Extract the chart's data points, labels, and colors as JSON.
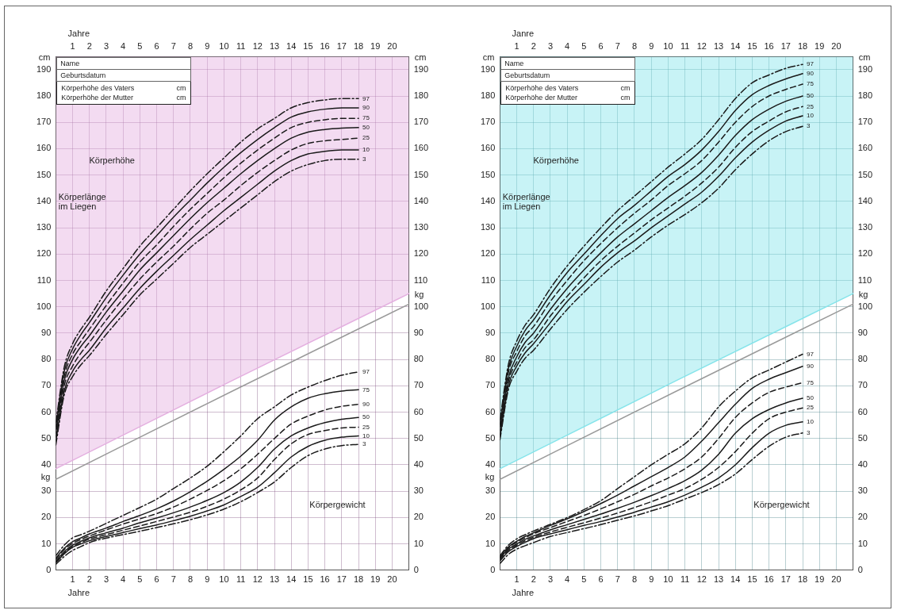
{
  "chart_data": [
    {
      "type": "line",
      "x": [
        0,
        0.5,
        1,
        1.5,
        2,
        3,
        4,
        5,
        6,
        7,
        8,
        9,
        10,
        11,
        12,
        13,
        14,
        15,
        16,
        17,
        18
      ],
      "xlim": [
        0,
        21
      ],
      "xticks": [
        1,
        2,
        3,
        4,
        5,
        6,
        7,
        8,
        9,
        10,
        11,
        12,
        13,
        14,
        15,
        16,
        17,
        18,
        19,
        20
      ],
      "x2lim": [
        0,
        21
      ],
      "x2ticks": [
        1,
        2,
        3,
        4,
        5,
        6,
        7,
        8,
        9,
        10,
        11,
        12,
        13,
        14,
        15,
        16,
        17,
        18,
        19,
        20
      ],
      "xlabel": "Jahre",
      "x2label": "Jahre",
      "ylabel": "cm",
      "y2label": "cm",
      "ylim": [
        0,
        195
      ],
      "yticks": [
        0,
        10,
        20,
        30,
        40,
        50,
        60,
        70,
        80,
        90,
        100,
        110,
        120,
        130,
        140,
        150,
        160,
        170,
        180,
        190
      ],
      "y2lim": [
        0,
        195
      ],
      "y2ticks": [
        0,
        10,
        20,
        30,
        40,
        50,
        60,
        70,
        80,
        90,
        100,
        110,
        120,
        130,
        140,
        150,
        160,
        170,
        180,
        190
      ],
      "grid": true,
      "marker": "none",
      "annotations": [
        "Name",
        "Geburtsdatum",
        "Körperhöhe des Vaters",
        "Körperhöhe der Mutter",
        "cm",
        "cm",
        "kg",
        "kg",
        "Körperhöhe",
        "Körperlänge im Liegen",
        "Körpergewicht"
      ],
      "series": [
        {
          "color": "#e4b0e0",
          "line_style": "solid",
          "x": [
            0,
            10.5,
            21
          ],
          "values": [
            38.5,
            72,
            105
          ],
          "lower": [
            38.5,
            72,
            105
          ],
          "upper": [
            195,
            195,
            195
          ]
        },
        {
          "color": "#9a9a9a",
          "line_style": "solid",
          "x": [
            0,
            10.5,
            21
          ],
          "values": [
            34.5,
            68,
            101
          ]
        },
        {
          "name": "97",
          "color": "#1a1a1a",
          "line_style": "dashdot",
          "values": [
            56,
            77,
            86,
            91.5,
            96,
            106,
            114.5,
            123,
            130,
            137,
            144,
            150.5,
            156.5,
            162.5,
            167.5,
            171.5,
            175.5,
            177.5,
            178.5,
            179,
            179
          ]
        },
        {
          "name": "90",
          "color": "#1a1a1a",
          "line_style": "solid",
          "values": [
            54.5,
            75.5,
            84,
            89.5,
            94,
            103.5,
            112,
            120,
            127,
            134,
            140.5,
            147,
            153,
            158.5,
            163.5,
            168,
            172,
            174,
            175,
            175.5,
            175.5
          ]
        },
        {
          "name": "75",
          "color": "#1a1a1a",
          "line_style": "dashed",
          "values": [
            53.5,
            73.5,
            82,
            87,
            91.5,
            100.5,
            109,
            117,
            123.5,
            130.5,
            137,
            143,
            149,
            154.5,
            159.5,
            164,
            168,
            170,
            171,
            171.5,
            171.5
          ]
        },
        {
          "name": "50",
          "color": "#1a1a1a",
          "line_style": "solid",
          "values": [
            52,
            72,
            80,
            85,
            89,
            98,
            106,
            114,
            120.5,
            127,
            133.5,
            139.5,
            145,
            150.5,
            155.5,
            160,
            164,
            166.3,
            167.3,
            167.8,
            168
          ]
        },
        {
          "name": "25",
          "color": "#1a1a1a",
          "line_style": "dashed",
          "values": [
            50.5,
            70,
            77.5,
            82.5,
            86.5,
            95,
            103,
            110.5,
            117,
            123,
            129.5,
            135.5,
            140.5,
            146,
            151,
            155.5,
            159.5,
            162,
            163,
            163.5,
            164
          ]
        },
        {
          "name": "10",
          "color": "#1a1a1a",
          "line_style": "solid",
          "values": [
            49,
            68,
            75.5,
            80,
            83.5,
            92,
            99.5,
            107,
            113.5,
            119.5,
            125.5,
            131,
            136.5,
            141.5,
            146.5,
            151.5,
            155.5,
            158,
            159,
            159.5,
            159.5
          ]
        },
        {
          "name": "3",
          "color": "#1a1a1a",
          "line_style": "dashdot",
          "values": [
            47.5,
            66.5,
            73.5,
            78,
            81.5,
            89.5,
            97,
            104.5,
            110.5,
            116.5,
            122.5,
            127.5,
            132.5,
            137.5,
            142.5,
            147.5,
            151.5,
            154,
            155.5,
            156,
            156
          ]
        },
        {
          "name": "97",
          "color": "#1a1a1a",
          "line_style": "dashdot",
          "values": [
            5.5,
            9.5,
            12.3,
            13.5,
            14.8,
            17.8,
            20.8,
            23.8,
            27,
            31,
            35,
            39.5,
            45,
            51,
            57.5,
            62,
            66.5,
            69.5,
            72,
            74,
            75.3
          ]
        },
        {
          "name": "75",
          "color": "#1a1a1a",
          "line_style": "solid",
          "values": [
            4.5,
            8.3,
            10.8,
            12.3,
            13.8,
            16,
            18.5,
            20.8,
            23.3,
            26.3,
            29.8,
            33.8,
            38.3,
            43.3,
            49.3,
            57,
            62,
            65.3,
            67,
            68,
            68.5
          ]
        },
        {
          "name": "90",
          "color": "#1a1a1a",
          "line_style": "dashed",
          "values": [
            4,
            7.8,
            10.2,
            11.7,
            13,
            15.3,
            17.5,
            19.5,
            21.5,
            24,
            27,
            30.3,
            34,
            38.5,
            44,
            50,
            55.5,
            58.5,
            60.8,
            62.2,
            63
          ]
        },
        {
          "name": "50",
          "color": "#1a1a1a",
          "line_style": "solid",
          "values": [
            3.3,
            7,
            9.5,
            11,
            12.3,
            14.2,
            16,
            18,
            19.8,
            21.8,
            24,
            26.5,
            29.5,
            33.5,
            39,
            46,
            51,
            54,
            56,
            57.3,
            58
          ]
        },
        {
          "name": "25",
          "color": "#1a1a1a",
          "line_style": "dashed",
          "values": [
            3,
            6.5,
            9,
            10.5,
            11.8,
            13.5,
            15.2,
            16.8,
            18.5,
            20.2,
            22,
            24.3,
            27,
            30.5,
            35,
            42,
            48,
            51.5,
            53,
            54,
            54.3
          ]
        },
        {
          "name": "10",
          "color": "#1a1a1a",
          "line_style": "solid",
          "values": [
            2.8,
            6.2,
            8.7,
            10,
            11.2,
            12.8,
            14.3,
            15.8,
            17.2,
            18.8,
            20.5,
            22.5,
            24.8,
            28,
            31.5,
            37,
            43,
            47,
            49.3,
            50.5,
            51
          ]
        },
        {
          "name": "3",
          "color": "#1a1a1a",
          "line_style": "dashdot",
          "values": [
            2.2,
            5.2,
            7.5,
            9,
            10.5,
            12.2,
            13.5,
            14.8,
            16.2,
            17.6,
            19.2,
            21,
            23.2,
            26,
            29.5,
            33.5,
            39,
            43.5,
            46,
            47.3,
            47.8
          ]
        }
      ]
    },
    {
      "type": "line",
      "x": [
        0,
        0.5,
        1,
        1.5,
        2,
        3,
        4,
        5,
        6,
        7,
        8,
        9,
        10,
        11,
        12,
        13,
        14,
        15,
        16,
        17,
        18
      ],
      "xlim": [
        0,
        21
      ],
      "xticks": [
        1,
        2,
        3,
        4,
        5,
        6,
        7,
        8,
        9,
        10,
        11,
        12,
        13,
        14,
        15,
        16,
        17,
        18,
        19,
        20
      ],
      "x2lim": [
        0,
        21
      ],
      "x2ticks": [
        1,
        2,
        3,
        4,
        5,
        6,
        7,
        8,
        9,
        10,
        11,
        12,
        13,
        14,
        15,
        16,
        17,
        18,
        19,
        20
      ],
      "xlabel": "Jahre",
      "x2label": "Janre",
      "ylabel": "cm",
      "y2label": "cm",
      "ylim": [
        0,
        195
      ],
      "yticks": [
        0,
        10,
        20,
        30,
        40,
        50,
        60,
        70,
        80,
        90,
        100,
        110,
        120,
        130,
        140,
        150,
        160,
        170,
        180,
        190
      ],
      "y2lim": [
        0,
        195
      ],
      "y2ticks": [
        0,
        10,
        20,
        30,
        40,
        50,
        60,
        70,
        80,
        90,
        100,
        110,
        120,
        130,
        140,
        150,
        160,
        170,
        180,
        190
      ],
      "grid": true,
      "marker": "none",
      "annotations": [
        "Name",
        "Geburtsdatum",
        "Körperhöhe des Vaters",
        "Körperhöhe der Mutter",
        "cm",
        "cm",
        "kg",
        "kg",
        "Körperhöhe",
        "Körperlänge im Liegen",
        "Körpergewicht"
      ],
      "series": [
        {
          "color": "#86e4ea",
          "line_style": "solid",
          "x": [
            0,
            10.5,
            21
          ],
          "values": [
            38.5,
            72,
            105
          ],
          "lower": [
            38.5,
            72,
            105
          ],
          "upper": [
            195,
            195,
            195
          ]
        },
        {
          "color": "#9a9a9a",
          "line_style": "solid",
          "x": [
            0,
            10.5,
            21
          ],
          "values": [
            34.5,
            68,
            101
          ]
        },
        {
          "name": "97",
          "color": "#1a1a1a",
          "line_style": "dashdot",
          "values": [
            57,
            78,
            87,
            93,
            97,
            107,
            115.5,
            123,
            130,
            136.5,
            142,
            147.5,
            153,
            158,
            163.5,
            171,
            179,
            185,
            188,
            190.5,
            192
          ]
        },
        {
          "name": "90",
          "color": "#1a1a1a",
          "line_style": "solid",
          "values": [
            55.5,
            76.5,
            85,
            91,
            95,
            104.5,
            113,
            120,
            127,
            133.5,
            138.5,
            144,
            149.5,
            154,
            159.5,
            166.5,
            174.5,
            180.5,
            184,
            186.5,
            188.5
          ]
        },
        {
          "name": "75",
          "color": "#1a1a1a",
          "line_style": "dashed",
          "values": [
            54.5,
            75,
            83,
            89,
            92.5,
            102,
            110,
            117.5,
            124,
            130,
            135.5,
            140.5,
            146,
            150.5,
            155.5,
            162.5,
            170,
            176,
            180,
            182.5,
            184.5
          ]
        },
        {
          "name": "50",
          "color": "#1a1a1a",
          "line_style": "solid",
          "values": [
            53,
            73,
            81,
            86.5,
            90,
            99,
            107,
            114,
            120.5,
            126.5,
            131.5,
            136.5,
            141.5,
            146,
            151,
            157.5,
            165,
            171,
            175,
            178,
            180
          ]
        },
        {
          "name": "25",
          "color": "#1a1a1a",
          "line_style": "dashed",
          "values": [
            51.5,
            71.5,
            79,
            84.5,
            87.5,
            96.5,
            104,
            111,
            117.5,
            123,
            128,
            133,
            137.5,
            142,
            147,
            153,
            160.5,
            166.5,
            170.5,
            174,
            176
          ]
        },
        {
          "name": "10",
          "color": "#1a1a1a",
          "line_style": "solid",
          "values": [
            50.5,
            70,
            77.5,
            82.5,
            86,
            94,
            102,
            108.5,
            115,
            120.5,
            125,
            130,
            134.5,
            139,
            143.5,
            149.5,
            156.5,
            162.5,
            167,
            170.5,
            172.5
          ]
        },
        {
          "name": "3",
          "color": "#1a1a1a",
          "line_style": "dashdot",
          "values": [
            49.5,
            68.5,
            75.5,
            80.5,
            83.5,
            91.5,
            99,
            105.5,
            111.5,
            117,
            121.5,
            126.5,
            131,
            135,
            139.5,
            145,
            152,
            158,
            163,
            166.5,
            168.5
          ]
        },
        {
          "name": "97",
          "color": "#1a1a1a",
          "line_style": "dashdot",
          "values": [
            5.5,
            9.5,
            11.9,
            13.5,
            14.9,
            17.4,
            20,
            23,
            26.4,
            31,
            35.5,
            40,
            44,
            48,
            54,
            62,
            68,
            73,
            76,
            79,
            82
          ]
        },
        {
          "name": "90",
          "color": "#1a1a1a",
          "line_style": "solid",
          "values": [
            5,
            8.8,
            11,
            12.8,
            14.2,
            17,
            19.5,
            22.3,
            25.3,
            28.5,
            32,
            35.5,
            39,
            43,
            49,
            56,
            63,
            69,
            72.5,
            75,
            77.4
          ]
        },
        {
          "name": "75",
          "color": "#1a1a1a",
          "line_style": "dashed",
          "values": [
            4.8,
            8.5,
            10.6,
            12.3,
            13.8,
            16.2,
            18.5,
            20.8,
            23.3,
            26,
            28.8,
            32,
            35,
            38.5,
            43,
            50,
            58,
            63.5,
            67.5,
            69.5,
            71.2
          ]
        },
        {
          "name": "50",
          "color": "#1a1a1a",
          "line_style": "solid",
          "values": [
            4.5,
            8,
            10,
            11.7,
            13,
            15.3,
            17.3,
            19.3,
            21.3,
            23.5,
            25.8,
            28.3,
            31,
            34,
            38,
            44,
            52,
            57.5,
            61,
            63.5,
            65.3
          ]
        },
        {
          "name": "25",
          "color": "#1a1a1a",
          "line_style": "dashed",
          "values": [
            4,
            7.5,
            9.5,
            11.2,
            12.5,
            14.5,
            16.3,
            18,
            19.8,
            21.7,
            23.8,
            26,
            28.5,
            31,
            34.5,
            39,
            45,
            52,
            57.5,
            60,
            61.6
          ]
        },
        {
          "name": "10",
          "color": "#1a1a1a",
          "line_style": "solid",
          "values": [
            3.5,
            7,
            9,
            10.6,
            12,
            13.8,
            15.4,
            17,
            18.5,
            20.2,
            22,
            24,
            26,
            28.5,
            31.5,
            35,
            40,
            46.5,
            52,
            55,
            56.3
          ]
        },
        {
          "name": "3",
          "color": "#1a1a1a",
          "line_style": "dashdot",
          "values": [
            2.5,
            6,
            8,
            9.3,
            10.5,
            12.8,
            14.3,
            15.8,
            17.3,
            19,
            20.6,
            22.5,
            24.5,
            27,
            29.5,
            32.5,
            36.5,
            42,
            47,
            50.5,
            52.1
          ]
        }
      ]
    }
  ]
}
